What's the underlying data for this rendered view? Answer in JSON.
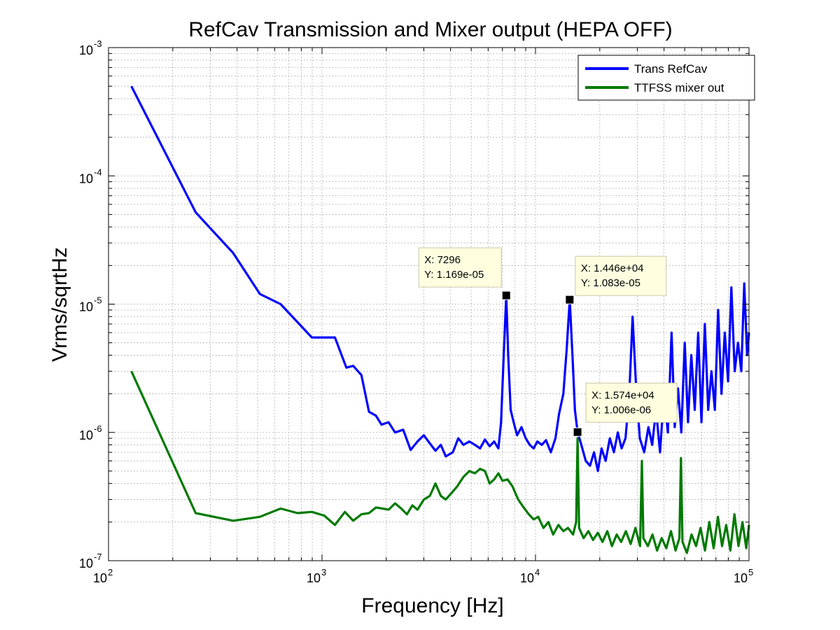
{
  "chart_data": {
    "type": "line",
    "title": "RefCav Transmission and Mixer output (HEPA OFF)",
    "xlabel": "Frequency [Hz]",
    "ylabel": "Vrms/sqrtHz",
    "xscale": "log",
    "yscale": "log",
    "xlim": [
      100,
      100000
    ],
    "ylim": [
      1e-07,
      0.001
    ],
    "grid": true,
    "legend_position": "top-right",
    "x_ticks": [
      {
        "base": "10",
        "exp": "2",
        "value": 100
      },
      {
        "base": "10",
        "exp": "3",
        "value": 1000
      },
      {
        "base": "10",
        "exp": "4",
        "value": 10000
      },
      {
        "base": "10",
        "exp": "5",
        "value": 100000
      }
    ],
    "y_ticks": [
      {
        "base": "10",
        "exp": "-7",
        "value": 1e-07
      },
      {
        "base": "10",
        "exp": "-6",
        "value": 1e-06
      },
      {
        "base": "10",
        "exp": "-5",
        "value": 1e-05
      },
      {
        "base": "10",
        "exp": "-4",
        "value": 0.0001
      },
      {
        "base": "10",
        "exp": "-3",
        "value": 0.001
      }
    ],
    "series": [
      {
        "name": "Trans RefCav",
        "color": "#0000ff",
        "points": [
          [
            128,
            0.0005
          ],
          [
            256,
            5.2e-05
          ],
          [
            384,
            2.5e-05
          ],
          [
            512,
            1.2e-05
          ],
          [
            640,
            1e-05
          ],
          [
            896,
            5.5e-06
          ],
          [
            1150,
            5.5e-06
          ],
          [
            1300,
            3.2e-06
          ],
          [
            1400,
            3.3e-06
          ],
          [
            1530,
            2.8e-06
          ],
          [
            1660,
            1.45e-06
          ],
          [
            1790,
            1.35e-06
          ],
          [
            1900,
            1.15e-06
          ],
          [
            2050,
            1.2e-06
          ],
          [
            2200,
            1e-06
          ],
          [
            2400,
            1.05e-06
          ],
          [
            2600,
            7.3e-07
          ],
          [
            2800,
            8.5e-07
          ],
          [
            3000,
            9.5e-07
          ],
          [
            3200,
            8.2e-07
          ],
          [
            3400,
            7.2e-07
          ],
          [
            3600,
            8e-07
          ],
          [
            3800,
            6.5e-07
          ],
          [
            4100,
            7e-07
          ],
          [
            4350,
            9e-07
          ],
          [
            4600,
            8e-07
          ],
          [
            4900,
            8.5e-07
          ],
          [
            5200,
            8e-07
          ],
          [
            5500,
            7.5e-07
          ],
          [
            5800,
            8.8e-07
          ],
          [
            6100,
            7.8e-07
          ],
          [
            6400,
            8.5e-07
          ],
          [
            6700,
            7.5e-07
          ],
          [
            6900,
            1.2e-06
          ],
          [
            7100,
            4e-06
          ],
          [
            7296,
            1.169e-05
          ],
          [
            7450,
            4e-06
          ],
          [
            7650,
            1.5e-06
          ],
          [
            7900,
            1.2e-06
          ],
          [
            8200,
            9.5e-07
          ],
          [
            8600,
            1.1e-06
          ],
          [
            9000,
            9e-07
          ],
          [
            9400,
            8e-07
          ],
          [
            9800,
            7.5e-07
          ],
          [
            10200,
            8.5e-07
          ],
          [
            10700,
            8e-07
          ],
          [
            11200,
            8.7e-07
          ],
          [
            11800,
            7e-07
          ],
          [
            12400,
            9e-07
          ],
          [
            12900,
            1.4e-06
          ],
          [
            13500,
            2e-06
          ],
          [
            14000,
            4.5e-06
          ],
          [
            14460,
            1.083e-05
          ],
          [
            14900,
            4e-06
          ],
          [
            15300,
            1.5e-06
          ],
          [
            15740,
            1.006e-06
          ],
          [
            16400,
            8e-07
          ],
          [
            17200,
            6e-07
          ],
          [
            18000,
            5.5e-07
          ],
          [
            18800,
            7e-07
          ],
          [
            19600,
            5e-07
          ],
          [
            20400,
            7.5e-07
          ],
          [
            21300,
            6e-07
          ],
          [
            22300,
            9e-07
          ],
          [
            23300,
            7e-07
          ],
          [
            24300,
            1e-06
          ],
          [
            25300,
            7.5e-07
          ],
          [
            26400,
            9e-07
          ],
          [
            27500,
            2e-06
          ],
          [
            28500,
            8e-06
          ],
          [
            29500,
            2.5e-06
          ],
          [
            30800,
            9e-07
          ],
          [
            32300,
            7e-07
          ],
          [
            33800,
            1.1e-06
          ],
          [
            35200,
            8e-07
          ],
          [
            36700,
            1.5e-06
          ],
          [
            38300,
            7e-07
          ],
          [
            40000,
            2e-06
          ],
          [
            41700,
            1e-06
          ],
          [
            43400,
            6e-06
          ],
          [
            44900,
            1.1e-06
          ],
          [
            46500,
            2.2e-06
          ],
          [
            48200,
            1e-06
          ],
          [
            50000,
            5e-06
          ],
          [
            51800,
            1.2e-06
          ],
          [
            53700,
            4e-06
          ],
          [
            55700,
            1.5e-06
          ],
          [
            57800,
            6e-06
          ],
          [
            59900,
            1.2e-06
          ],
          [
            62100,
            7e-06
          ],
          [
            64400,
            1.5e-06
          ],
          [
            66700,
            3e-06
          ],
          [
            69200,
            1.5e-06
          ],
          [
            71700,
            9e-06
          ],
          [
            74300,
            2e-06
          ],
          [
            77000,
            6e-06
          ],
          [
            79800,
            2.5e-06
          ],
          [
            82700,
            1.35e-05
          ],
          [
            85700,
            3e-06
          ],
          [
            88800,
            5e-06
          ],
          [
            92000,
            3e-06
          ],
          [
            95000,
            1.45e-05
          ],
          [
            98000,
            4e-06
          ],
          [
            100000,
            6e-06
          ]
        ]
      },
      {
        "name": "TTFSS mixer out",
        "color": "#007a00",
        "points": [
          [
            128,
            3e-06
          ],
          [
            256,
            2.35e-07
          ],
          [
            384,
            2.05e-07
          ],
          [
            512,
            2.2e-07
          ],
          [
            640,
            2.55e-07
          ],
          [
            768,
            2.35e-07
          ],
          [
            896,
            2.4e-07
          ],
          [
            1024,
            2.25e-07
          ],
          [
            1150,
            1.9e-07
          ],
          [
            1280,
            2.4e-07
          ],
          [
            1400,
            2.05e-07
          ],
          [
            1530,
            2.3e-07
          ],
          [
            1660,
            2.35e-07
          ],
          [
            1790,
            2.6e-07
          ],
          [
            1920,
            2.55e-07
          ],
          [
            2050,
            2.5e-07
          ],
          [
            2200,
            2.8e-07
          ],
          [
            2350,
            2.55e-07
          ],
          [
            2500,
            2.3e-07
          ],
          [
            2650,
            2.7e-07
          ],
          [
            2800,
            2.5e-07
          ],
          [
            3000,
            3e-07
          ],
          [
            3200,
            3.2e-07
          ],
          [
            3400,
            4e-07
          ],
          [
            3600,
            3.2e-07
          ],
          [
            3800,
            3e-07
          ],
          [
            4000,
            3.3e-07
          ],
          [
            4300,
            3.8e-07
          ],
          [
            4600,
            4.5e-07
          ],
          [
            4900,
            5e-07
          ],
          [
            5200,
            4.8e-07
          ],
          [
            5500,
            5.2e-07
          ],
          [
            5800,
            5e-07
          ],
          [
            6100,
            4e-07
          ],
          [
            6400,
            4.3e-07
          ],
          [
            6700,
            4.8e-07
          ],
          [
            7000,
            4.2e-07
          ],
          [
            7400,
            4.3e-07
          ],
          [
            7800,
            3.8e-07
          ],
          [
            8300,
            3e-07
          ],
          [
            8800,
            2.6e-07
          ],
          [
            9300,
            2.3e-07
          ],
          [
            9800,
            2.1e-07
          ],
          [
            10300,
            2.2e-07
          ],
          [
            10900,
            1.8e-07
          ],
          [
            11500,
            2e-07
          ],
          [
            12100,
            1.6e-07
          ],
          [
            12800,
            1.9e-07
          ],
          [
            13500,
            1.7e-07
          ],
          [
            14200,
            1.8e-07
          ],
          [
            15000,
            1.6e-07
          ],
          [
            15500,
            2e-07
          ],
          [
            15740,
            9e-07
          ],
          [
            16000,
            1.8e-07
          ],
          [
            16800,
            1.5e-07
          ],
          [
            17700,
            1.7e-07
          ],
          [
            18600,
            1.45e-07
          ],
          [
            19600,
            1.65e-07
          ],
          [
            20600,
            1.4e-07
          ],
          [
            21700,
            1.7e-07
          ],
          [
            22800,
            1.3e-07
          ],
          [
            24000,
            1.6e-07
          ],
          [
            25200,
            1.4e-07
          ],
          [
            26500,
            1.7e-07
          ],
          [
            27900,
            1.35e-07
          ],
          [
            29400,
            1.8e-07
          ],
          [
            30900,
            1.3e-07
          ],
          [
            31500,
            6e-07
          ],
          [
            32000,
            1.5e-07
          ],
          [
            33600,
            1.3e-07
          ],
          [
            35300,
            1.6e-07
          ],
          [
            37100,
            1.2e-07
          ],
          [
            39000,
            1.5e-07
          ],
          [
            41000,
            1.25e-07
          ],
          [
            43100,
            1.7e-07
          ],
          [
            45300,
            1.2e-07
          ],
          [
            47200,
            1.5e-07
          ],
          [
            48000,
            6.3e-07
          ],
          [
            48800,
            1.4e-07
          ],
          [
            51200,
            1.15e-07
          ],
          [
            53800,
            1.6e-07
          ],
          [
            56500,
            1.3e-07
          ],
          [
            59300,
            1.8e-07
          ],
          [
            62200,
            1.2e-07
          ],
          [
            65200,
            2e-07
          ],
          [
            68300,
            1.25e-07
          ],
          [
            71500,
            2.2e-07
          ],
          [
            74800,
            1.3e-07
          ],
          [
            78200,
            1.9e-07
          ],
          [
            81800,
            1.2e-07
          ],
          [
            85500,
            2.3e-07
          ],
          [
            89300,
            1.3e-07
          ],
          [
            93200,
            2e-07
          ],
          [
            97100,
            1.25e-07
          ],
          [
            100000,
            1.9e-07
          ]
        ]
      }
    ],
    "datatips": [
      {
        "x": 7296,
        "y": 1.169e-05,
        "lines": [
          "X: 7296",
          "Y: 1.169e-05"
        ]
      },
      {
        "x": 14460,
        "y": 1.083e-05,
        "lines": [
          "X: 1.446e+04",
          "Y: 1.083e-05"
        ]
      },
      {
        "x": 15740,
        "y": 1.006e-06,
        "lines": [
          "X: 1.574e+04",
          "Y: 1.006e-06"
        ]
      }
    ]
  }
}
